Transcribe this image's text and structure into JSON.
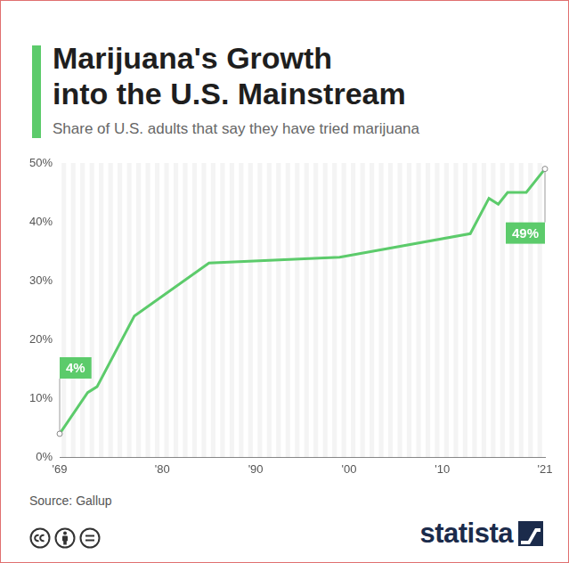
{
  "chart_data": {
    "type": "line",
    "title": "Marijuana's Growth\ninto the U.S. Mainstream",
    "subtitle": "Share of U.S. adults that say they have tried marijuana",
    "source": "Source: Gallup",
    "logo": "statista",
    "x": [
      1969,
      1972,
      1973,
      1977,
      1985,
      1999,
      2013,
      2015,
      2016,
      2017,
      2019,
      2021
    ],
    "values": [
      4,
      11,
      12,
      24,
      33,
      34,
      38,
      44,
      43,
      45,
      45,
      49
    ],
    "color": "#5ccb6b",
    "xlim": [
      1969,
      2021
    ],
    "xticks": [
      {
        "value": 1969,
        "label": "'69"
      },
      {
        "value": 1980,
        "label": "'80"
      },
      {
        "value": 1990,
        "label": "'90"
      },
      {
        "value": 2000,
        "label": "'00"
      },
      {
        "value": 2010,
        "label": "'10"
      },
      {
        "value": 2021,
        "label": "'21"
      }
    ],
    "ylim": [
      0,
      50
    ],
    "yticks": [
      {
        "value": 0,
        "label": "0%"
      },
      {
        "value": 10,
        "label": "10%"
      },
      {
        "value": 20,
        "label": "20%"
      },
      {
        "value": 30,
        "label": "30%"
      },
      {
        "value": 40,
        "label": "40%"
      },
      {
        "value": 50,
        "label": "50%"
      }
    ],
    "grid": false,
    "annotations": [
      {
        "x": 1969,
        "y": 4,
        "text": "4%"
      },
      {
        "x": 2021,
        "y": 49,
        "text": "49%"
      }
    ]
  }
}
